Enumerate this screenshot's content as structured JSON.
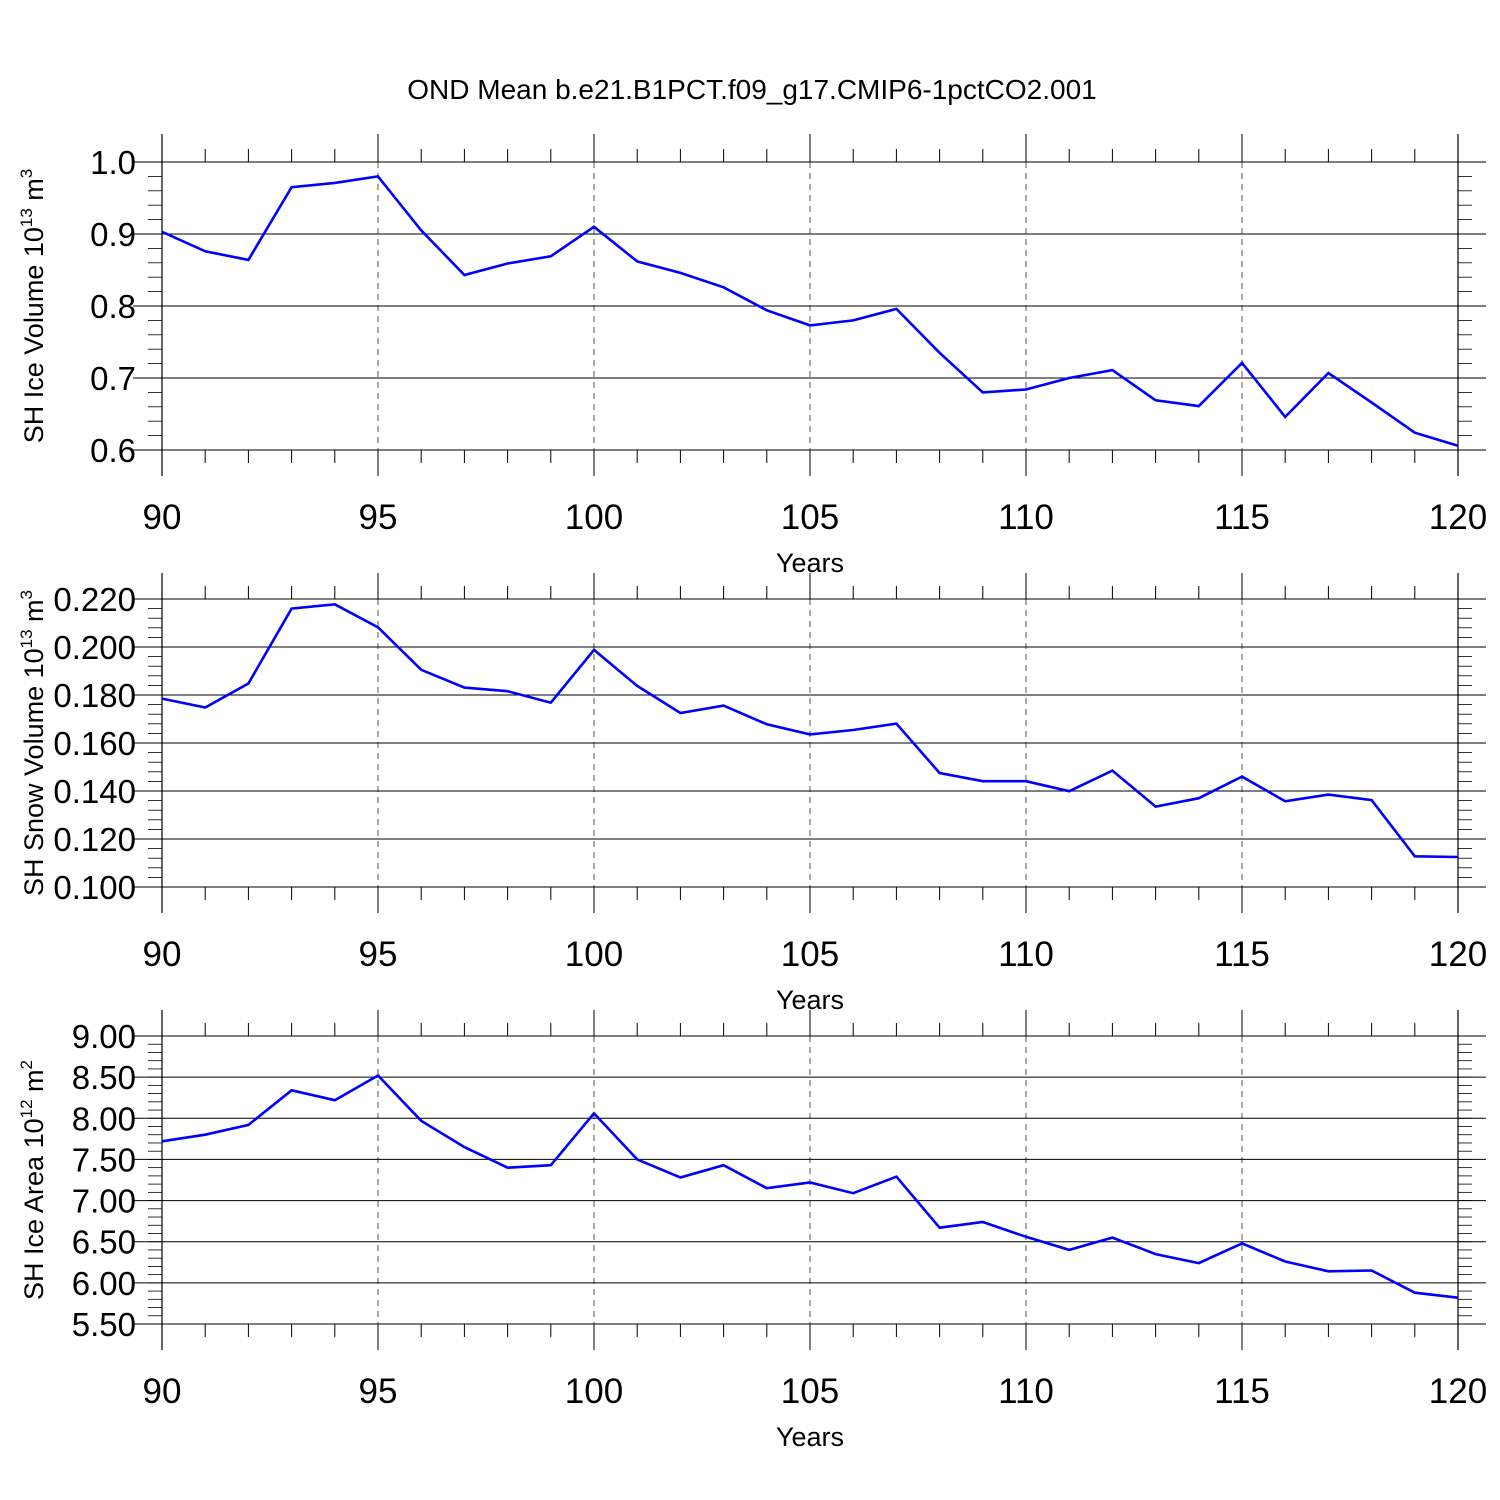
{
  "figure": {
    "title": "OND Mean b.e21.B1PCT.f09_g17.CMIP6-1pctCO2.001"
  },
  "colors": {
    "series": "#0000ff",
    "axis": "#000000",
    "grid": "#555555",
    "background": "#ffffff"
  },
  "chart_data": [
    {
      "type": "line",
      "title": "",
      "xlabel": "Years",
      "ylabel": "SH Ice Volume 10",
      "ylabel_sup": "13",
      "ylabel_unit": " m",
      "ylabel_unit_sup": "3",
      "xlim": [
        90,
        120
      ],
      "ylim": [
        0.6,
        1.0
      ],
      "xticks": [
        90,
        95,
        100,
        105,
        110,
        115,
        120
      ],
      "xtick_labels": [
        "90",
        "95",
        "100",
        "105",
        "110",
        "115",
        "120"
      ],
      "yticks": [
        0.6,
        0.7,
        0.8,
        0.9,
        1.0
      ],
      "ytick_labels": [
        "0.6",
        "0.7",
        "0.8",
        "0.9",
        "1.0"
      ],
      "y_minor_step": 0.02,
      "grid": "vertical dashed at major x ticks",
      "x": [
        90,
        91,
        92,
        93,
        94,
        95,
        96,
        97,
        98,
        99,
        100,
        101,
        102,
        103,
        104,
        105,
        106,
        107,
        108,
        109,
        110,
        111,
        112,
        113,
        114,
        115,
        116,
        117,
        118,
        119,
        120
      ],
      "series": [
        {
          "name": "SH Ice Volume",
          "values": [
            0.903,
            0.876,
            0.864,
            0.965,
            0.971,
            0.98,
            0.905,
            0.843,
            0.859,
            0.869,
            0.91,
            0.862,
            0.846,
            0.826,
            0.794,
            0.773,
            0.78,
            0.796,
            0.735,
            0.68,
            0.684,
            0.7,
            0.711,
            0.669,
            0.661,
            0.721,
            0.646,
            0.707,
            0.666,
            0.624,
            0.606
          ]
        }
      ]
    },
    {
      "type": "line",
      "title": "",
      "xlabel": "Years",
      "ylabel": "SH Snow Volume 10",
      "ylabel_sup": "13",
      "ylabel_unit": " m",
      "ylabel_unit_sup": "3",
      "xlim": [
        90,
        120
      ],
      "ylim": [
        0.1,
        0.22
      ],
      "xticks": [
        90,
        95,
        100,
        105,
        110,
        115,
        120
      ],
      "xtick_labels": [
        "90",
        "95",
        "100",
        "105",
        "110",
        "115",
        "120"
      ],
      "yticks": [
        0.1,
        0.12,
        0.14,
        0.16,
        0.18,
        0.2,
        0.22
      ],
      "ytick_labels": [
        "0.100",
        "0.120",
        "0.140",
        "0.160",
        "0.180",
        "0.200",
        "0.220"
      ],
      "y_minor_step": 0.004,
      "grid": "vertical dashed at major x ticks",
      "x": [
        90,
        91,
        92,
        93,
        94,
        95,
        96,
        97,
        98,
        99,
        100,
        101,
        102,
        103,
        104,
        105,
        106,
        107,
        108,
        109,
        110,
        111,
        112,
        113,
        114,
        115,
        116,
        117,
        118,
        119,
        120
      ],
      "series": [
        {
          "name": "SH Snow Volume",
          "values": [
            0.1785,
            0.1748,
            0.1848,
            0.216,
            0.2178,
            0.2082,
            0.1905,
            0.1831,
            0.1816,
            0.1768,
            0.1988,
            0.1838,
            0.1725,
            0.1756,
            0.1678,
            0.1636,
            0.1654,
            0.1681,
            0.1475,
            0.1441,
            0.1441,
            0.1399,
            0.1485,
            0.1335,
            0.137,
            0.146,
            0.1357,
            0.1385,
            0.1362,
            0.1128,
            0.1125
          ]
        }
      ]
    },
    {
      "type": "line",
      "title": "",
      "xlabel": "Years",
      "ylabel": "SH Ice Area 10",
      "ylabel_sup": "12",
      "ylabel_unit": " m",
      "ylabel_unit_sup": "2",
      "xlim": [
        90,
        120
      ],
      "ylim": [
        5.5,
        9.0
      ],
      "xticks": [
        90,
        95,
        100,
        105,
        110,
        115,
        120
      ],
      "xtick_labels": [
        "90",
        "95",
        "100",
        "105",
        "110",
        "115",
        "120"
      ],
      "yticks": [
        5.5,
        6.0,
        6.5,
        7.0,
        7.5,
        8.0,
        8.5,
        9.0
      ],
      "ytick_labels": [
        "5.50",
        "6.00",
        "6.50",
        "7.00",
        "7.50",
        "8.00",
        "8.50",
        "9.00"
      ],
      "y_minor_step": 0.1,
      "grid": "vertical dashed at major x ticks",
      "x": [
        90,
        91,
        92,
        93,
        94,
        95,
        96,
        97,
        98,
        99,
        100,
        101,
        102,
        103,
        104,
        105,
        106,
        107,
        108,
        109,
        110,
        111,
        112,
        113,
        114,
        115,
        116,
        117,
        118,
        119,
        120
      ],
      "series": [
        {
          "name": "SH Ice Area",
          "values": [
            7.72,
            7.8,
            7.92,
            8.34,
            8.22,
            8.52,
            7.97,
            7.65,
            7.4,
            7.43,
            8.06,
            7.5,
            7.28,
            7.43,
            7.15,
            7.22,
            7.09,
            7.29,
            6.67,
            6.74,
            6.56,
            6.4,
            6.55,
            6.35,
            6.24,
            6.48,
            6.26,
            6.14,
            6.15,
            5.88,
            5.82
          ]
        }
      ]
    }
  ]
}
